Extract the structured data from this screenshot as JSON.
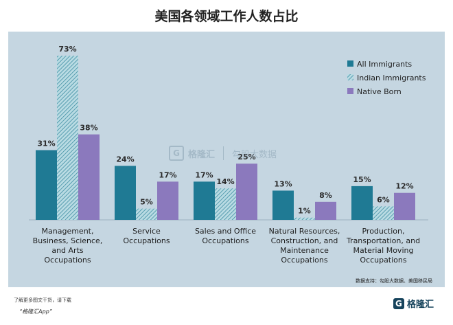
{
  "title": "美国各领域工作人数占比",
  "source_note": "数据支持：勾股大数据、美国移民局",
  "footer": {
    "note": "了解更多图文干货，请下载",
    "app": "“格隆汇App”",
    "logo_text": "格隆汇"
  },
  "watermark": {
    "brand": "格隆汇",
    "brand2": "勾股大数据"
  },
  "colors": {
    "all_immigrants": "#1f7a94",
    "indian_immigrants": "#8fc3cf",
    "native_born": "#8b79bd",
    "panel_bg": "#c5d6e1",
    "title": "#222222",
    "logo": "#16435c"
  },
  "chart_data": {
    "type": "bar",
    "title": "美国各领域工作人数占比",
    "xlabel": "",
    "ylabel": "",
    "ylim": [
      0,
      73
    ],
    "grid": false,
    "legend_position": "top-right",
    "categories": [
      [
        "Management,",
        "Business, Science,",
        "and Arts",
        "Occupations"
      ],
      [
        "Service",
        "Occupations"
      ],
      [
        "Sales and Office",
        "Occupations"
      ],
      [
        "Natural Resources,",
        "Construction, and",
        "Maintenance",
        "Occupations"
      ],
      [
        "Production,",
        "Transportation, and",
        "Material Moving",
        "Occupations"
      ]
    ],
    "series": [
      {
        "name": "All Immigrants",
        "values": [
          31,
          24,
          17,
          13,
          15
        ],
        "labels": [
          "31%",
          "24%",
          "17%",
          "13%",
          "15%"
        ]
      },
      {
        "name": "Indian Immigrants",
        "values": [
          73,
          5,
          14,
          1,
          6
        ],
        "labels": [
          "73%",
          "5%",
          "14%",
          "1%",
          "6%"
        ]
      },
      {
        "name": "Native Born",
        "values": [
          38,
          17,
          25,
          8,
          12
        ],
        "labels": [
          "38%",
          "17%",
          "25%",
          "8%",
          "12%"
        ]
      }
    ]
  }
}
